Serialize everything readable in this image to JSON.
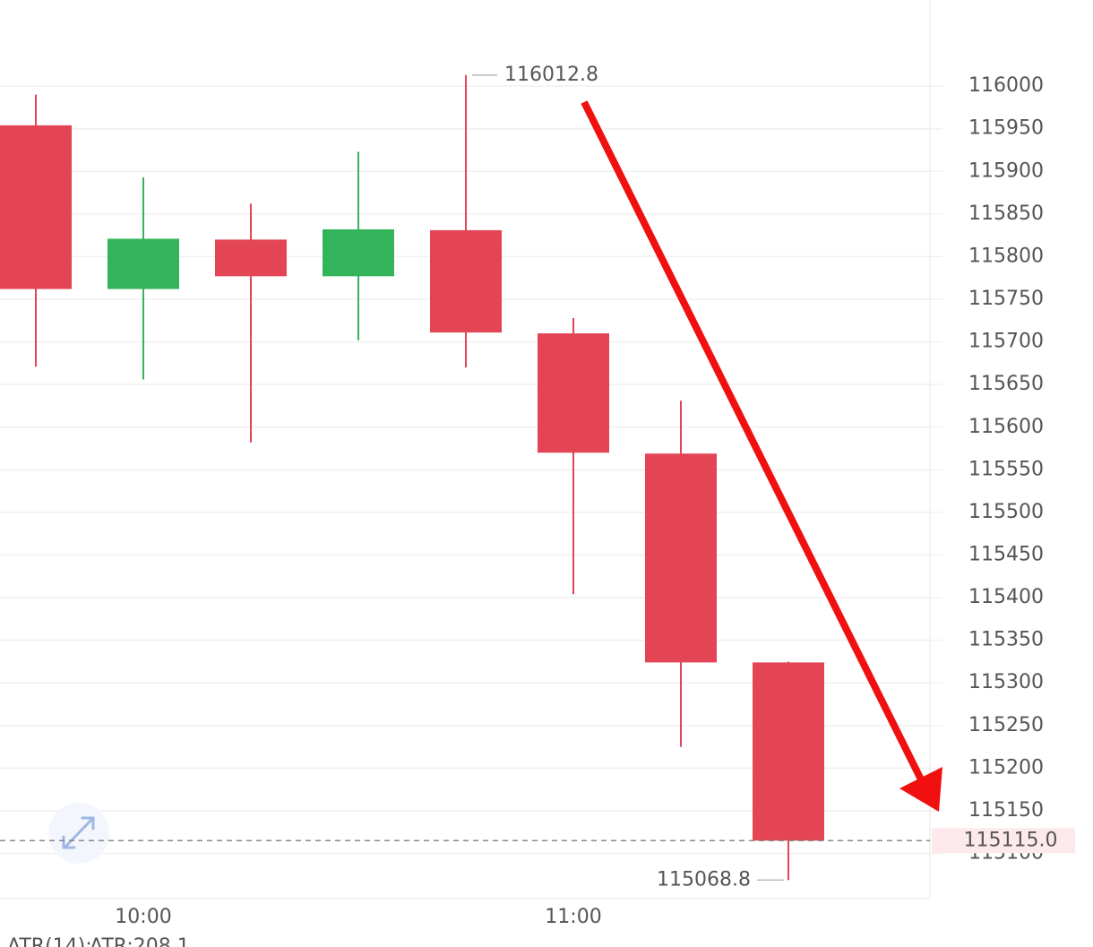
{
  "chart_data": {
    "type": "candlestick",
    "categories": [
      null,
      "10:00",
      null,
      null,
      null,
      "11:00",
      null,
      null
    ],
    "series": [
      {
        "up_color": "#34b45a",
        "down_color": "#e34554",
        "open": [
          115954,
          115762,
          115820,
          115777,
          115831,
          115710,
          115569,
          115324
        ],
        "high": [
          115990,
          115893,
          115862,
          115923,
          116012.8,
          115728,
          115631,
          115325
        ],
        "low": [
          115671,
          115656,
          115582,
          115702,
          115670,
          115404,
          115225,
          115068.8
        ],
        "close": [
          115762,
          115821,
          115777,
          115832,
          115711,
          115570,
          115324,
          115115
        ]
      }
    ],
    "ylim": [
      115047,
      116101
    ],
    "yticks": [
      115100,
      115150,
      115200,
      115250,
      115300,
      115350,
      115400,
      115450,
      115500,
      115550,
      115600,
      115650,
      115700,
      115750,
      115800,
      115850,
      115900,
      115950,
      116000
    ],
    "grid": true,
    "max_label": 116012.8,
    "min_label": 115068.8,
    "last_price": {
      "value": 115115,
      "label": "115115.0"
    },
    "indicator": {
      "name": "ATR(14):",
      "value_text": "ATR:208.1"
    }
  }
}
